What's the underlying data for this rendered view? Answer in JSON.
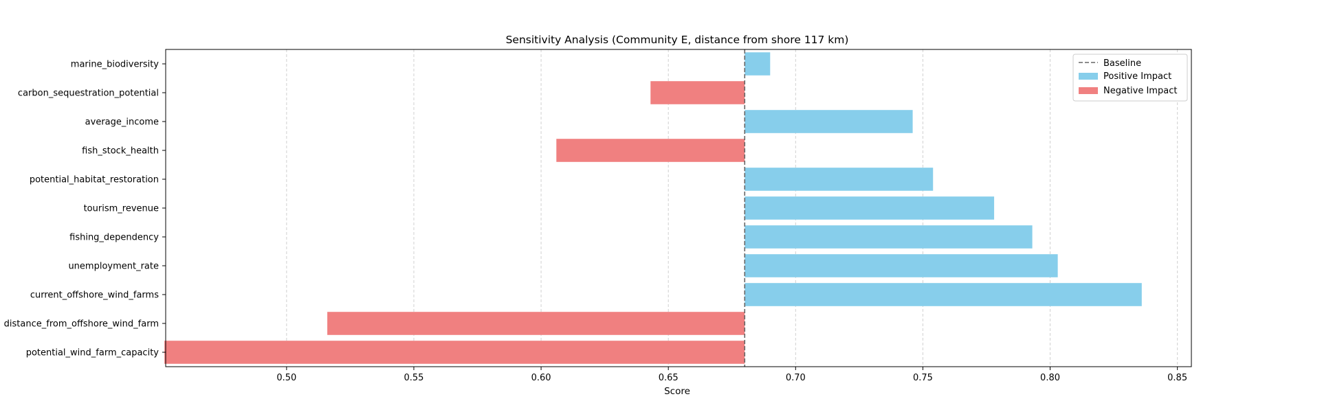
{
  "chart_data": {
    "type": "bar",
    "orientation": "horizontal",
    "title": "Sensitivity Analysis (Community E, distance from shore 117 km)",
    "xlabel": "Score",
    "ylabel": "",
    "baseline": 0.68,
    "xlim": [
      0.4525,
      0.8555
    ],
    "xticks": [
      "0.50",
      "0.55",
      "0.60",
      "0.65",
      "0.70",
      "0.75",
      "0.80",
      "0.85"
    ],
    "grid": "x-dashed",
    "legend_position": "top-right",
    "legend": {
      "baseline_label": "Baseline",
      "positive_label": "Positive Impact",
      "negative_label": "Negative Impact"
    },
    "colors": {
      "positive": "#87ceeb",
      "negative": "#f08080",
      "baseline": "#666666"
    },
    "categories": [
      "marine_biodiversity",
      "carbon_sequestration_potential",
      "average_income",
      "fish_stock_health",
      "potential_habitat_restoration",
      "tourism_revenue",
      "fishing_dependency",
      "unemployment_rate",
      "current_offshore_wind_farms",
      "distance_from_offshore_wind_farm",
      "potential_wind_farm_capacity"
    ],
    "values": [
      0.69,
      0.643,
      0.746,
      0.606,
      0.754,
      0.778,
      0.793,
      0.803,
      0.836,
      0.516,
      0.452
    ]
  }
}
